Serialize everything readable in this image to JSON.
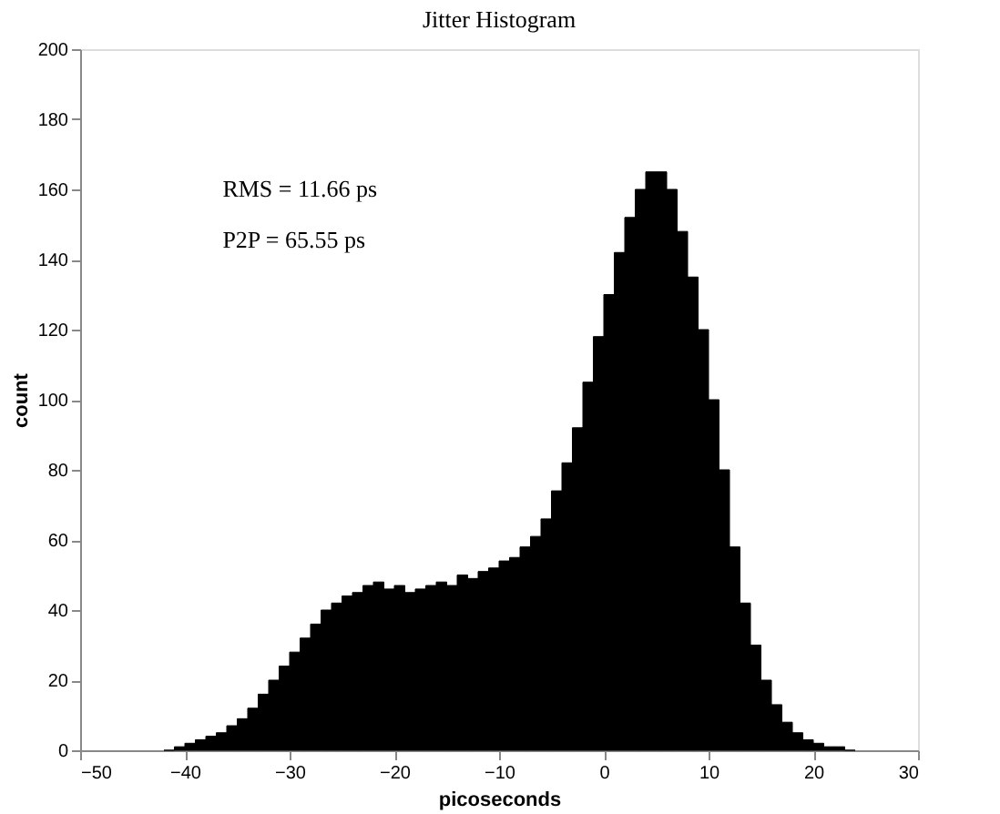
{
  "chart_data": {
    "type": "histogram",
    "title": "Jitter Histogram",
    "xlabel": "picoseconds",
    "ylabel": "count",
    "bins": [
      -42,
      -41,
      -40,
      -39,
      -38,
      -37,
      -36,
      -35,
      -34,
      -33,
      -32,
      -31,
      -30,
      -29,
      -28,
      -27,
      -26,
      -25,
      -24,
      -23,
      -22,
      -21,
      -20,
      -19,
      -18,
      -17,
      -16,
      -15,
      -14,
      -13,
      -12,
      -11,
      -10,
      -9,
      -8,
      -7,
      -6,
      -5,
      -4,
      -3,
      -2,
      -1,
      0,
      1,
      2,
      3,
      4,
      5,
      6,
      7,
      8,
      9,
      10,
      11,
      12,
      13,
      14,
      15,
      16,
      17,
      18,
      19,
      20,
      21,
      22,
      23,
      24
    ],
    "values": [
      0,
      1,
      2,
      3,
      4,
      5,
      7,
      9,
      12,
      16,
      20,
      24,
      28,
      32,
      36,
      40,
      42,
      44,
      45,
      47,
      48,
      46,
      47,
      45,
      46,
      47,
      48,
      47,
      50,
      49,
      51,
      52,
      54,
      55,
      58,
      61,
      66,
      74,
      82,
      92,
      105,
      118,
      130,
      142,
      152,
      160,
      165,
      165,
      160,
      148,
      135,
      120,
      100,
      80,
      58,
      42,
      30,
      20,
      13,
      8,
      5,
      3,
      2,
      1,
      1,
      0
    ],
    "color": "#000000",
    "xlim": [
      -50,
      30
    ],
    "xticks": [
      -50,
      -40,
      -30,
      -20,
      -10,
      0,
      10,
      20,
      30
    ],
    "ylim": [
      0,
      200
    ],
    "yticks": [
      0,
      20,
      40,
      60,
      80,
      100,
      120,
      140,
      160,
      180,
      200
    ],
    "grid": false,
    "annotations": [
      "RMS = 11.66 ps",
      "P2P = 65.55 ps"
    ]
  }
}
